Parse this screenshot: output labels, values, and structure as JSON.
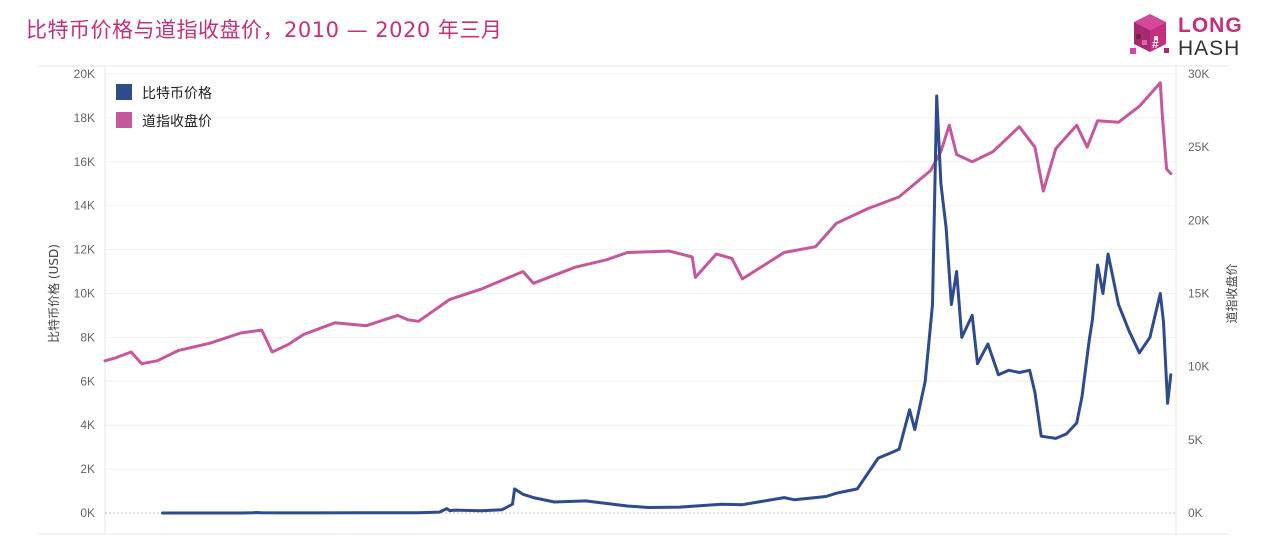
{
  "header": {
    "title": "比特币价格与道指收盘价，2010 — 2020 年三月"
  },
  "logo": {
    "line1": "LONG",
    "line2": "HASH",
    "colors": {
      "primary": "#c4307c",
      "secondary": "#333333"
    }
  },
  "chart_data": {
    "type": "line",
    "y_left": {
      "label": "比特币价格 (USD)",
      "ticks": [
        "0K",
        "2K",
        "4K",
        "6K",
        "8K",
        "10K",
        "12K",
        "14K",
        "16K",
        "18K",
        "20K"
      ],
      "range": [
        0,
        20000
      ]
    },
    "y_right": {
      "label": "道指收盘价",
      "ticks": [
        "0K",
        "5K",
        "10K",
        "15K",
        "20K",
        "25K",
        "30K"
      ],
      "range": [
        0,
        30000
      ]
    },
    "x_range": [
      2010.0,
      2020.25
    ],
    "grid": true,
    "legend": {
      "placement": "top-left",
      "entries": [
        {
          "name": "比特币价格",
          "color": "#2e4b8e"
        },
        {
          "name": "道指收盘价",
          "color": "#c4589a"
        }
      ]
    },
    "series": [
      {
        "name": "比特币价格",
        "axis": "left",
        "color": "#2e4b8e",
        "x": [
          2010.55,
          2011.0,
          2011.3,
          2011.42,
          2011.45,
          2011.5,
          2011.7,
          2012.0,
          2012.5,
          2012.8,
          2013.0,
          2013.2,
          2013.27,
          2013.3,
          2013.35,
          2013.6,
          2013.8,
          2013.9,
          2013.92,
          2014.0,
          2014.1,
          2014.3,
          2014.6,
          2014.9,
          2015.0,
          2015.2,
          2015.5,
          2015.9,
          2016.1,
          2016.5,
          2016.6,
          2016.9,
          2017.0,
          2017.2,
          2017.4,
          2017.5,
          2017.6,
          2017.7,
          2017.75,
          2017.85,
          2017.92,
          2017.96,
          2018.0,
          2018.05,
          2018.1,
          2018.15,
          2018.2,
          2018.3,
          2018.35,
          2018.45,
          2018.55,
          2018.65,
          2018.75,
          2018.85,
          2018.9,
          2018.96,
          2019.1,
          2019.2,
          2019.3,
          2019.35,
          2019.42,
          2019.45,
          2019.5,
          2019.55,
          2019.6,
          2019.7,
          2019.8,
          2019.9,
          2020.0,
          2020.05,
          2020.1,
          2020.13,
          2020.17,
          2020.2
        ],
        "y": [
          0,
          0,
          1,
          15,
          25,
          12,
          5,
          6,
          7,
          11,
          13,
          40,
          200,
          110,
          130,
          100,
          150,
          400,
          1100,
          850,
          700,
          500,
          550,
          380,
          320,
          250,
          270,
          400,
          380,
          700,
          600,
          750,
          900,
          1100,
          2500,
          2700,
          2900,
          4700,
          3800,
          6000,
          9500,
          19000,
          15000,
          13000,
          9500,
          11000,
          8000,
          9000,
          6800,
          7700,
          6300,
          6500,
          6400,
          6500,
          5500,
          3500,
          3400,
          3600,
          4100,
          5300,
          7900,
          8800,
          11300,
          10000,
          11800,
          9500,
          8300,
          7300,
          8000,
          9000,
          10000,
          8700,
          5000,
          6300
        ]
      },
      {
        "name": "道指收盘价",
        "axis": "right",
        "color": "#c4589a",
        "x": [
          2010.0,
          2010.1,
          2010.25,
          2010.35,
          2010.5,
          2010.7,
          2011.0,
          2011.3,
          2011.5,
          2011.6,
          2011.75,
          2011.9,
          2012.2,
          2012.5,
          2012.8,
          2012.9,
          2013.0,
          2013.3,
          2013.6,
          2014.0,
          2014.1,
          2014.5,
          2014.8,
          2015.0,
          2015.4,
          2015.62,
          2015.65,
          2015.85,
          2016.0,
          2016.1,
          2016.5,
          2016.8,
          2016.9,
          2017.0,
          2017.3,
          2017.6,
          2017.9,
          2018.0,
          2018.08,
          2018.15,
          2018.3,
          2018.5,
          2018.75,
          2018.9,
          2018.98,
          2019.1,
          2019.3,
          2019.4,
          2019.5,
          2019.7,
          2019.9,
          2020.0,
          2020.1,
          2020.12,
          2020.16,
          2020.2
        ],
        "y": [
          10400,
          10600,
          11000,
          10200,
          10400,
          11100,
          11600,
          12300,
          12500,
          11000,
          11500,
          12200,
          13000,
          12800,
          13500,
          13200,
          13100,
          14600,
          15300,
          16500,
          15700,
          16800,
          17300,
          17800,
          17900,
          17500,
          16100,
          17700,
          17400,
          16000,
          17800,
          18200,
          19000,
          19800,
          20800,
          21600,
          23400,
          24700,
          26500,
          24500,
          24000,
          24700,
          26400,
          25000,
          22000,
          24900,
          26500,
          25000,
          26800,
          26700,
          27800,
          28600,
          29400,
          27100,
          23500,
          23200
        ]
      }
    ]
  }
}
